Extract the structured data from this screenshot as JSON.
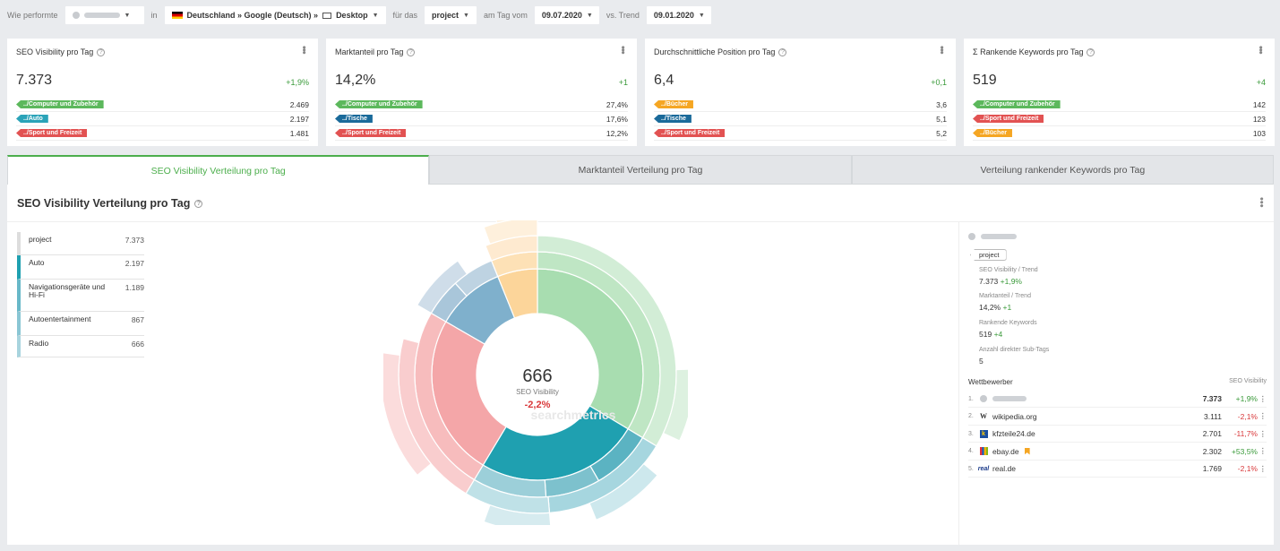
{
  "topbar": {
    "label_how": "Wie performte",
    "label_in": "in",
    "location": "Deutschland » Google (Deutsch) »",
    "device": "Desktop",
    "label_for": "für das",
    "project": "project",
    "label_day": "am Tag vom",
    "date": "09.07.2020",
    "label_trend": "vs. Trend",
    "trend_date": "09.01.2020"
  },
  "cards": [
    {
      "title": "SEO Visibility pro Tag",
      "value": "7.373",
      "delta": "+1,9%",
      "rows": [
        {
          "tag": "../Computer und Zubehör",
          "color": "green",
          "value": "2.469"
        },
        {
          "tag": "../Auto",
          "color": "teal",
          "value": "2.197"
        },
        {
          "tag": "../Sport und Freizeit",
          "color": "red",
          "value": "1.481"
        }
      ]
    },
    {
      "title": "Marktanteil pro Tag",
      "value": "14,2%",
      "delta": "+1",
      "rows": [
        {
          "tag": "../Computer und Zubehör",
          "color": "green",
          "value": "27,4%"
        },
        {
          "tag": "../Tische",
          "color": "navy",
          "value": "17,6%"
        },
        {
          "tag": "../Sport und Freizeit",
          "color": "red",
          "value": "12,2%"
        }
      ]
    },
    {
      "title": "Durchschnittliche Position pro Tag",
      "value": "6,4",
      "delta": "+0,1",
      "rows": [
        {
          "tag": "../Bücher",
          "color": "orange",
          "value": "3,6"
        },
        {
          "tag": "../Tische",
          "color": "navy",
          "value": "5,1"
        },
        {
          "tag": "../Sport und Freizeit",
          "color": "red",
          "value": "5,2"
        }
      ]
    },
    {
      "title": "Σ Rankende Keywords pro Tag",
      "value": "519",
      "delta": "+4",
      "rows": [
        {
          "tag": "../Computer und Zubehör",
          "color": "green",
          "value": "142"
        },
        {
          "tag": "../Sport und Freizeit",
          "color": "red",
          "value": "123"
        },
        {
          "tag": "../Bücher",
          "color": "orange",
          "value": "103"
        }
      ]
    }
  ],
  "tabs": [
    "SEO Visibility Verteilung pro Tag",
    "Marktanteil Verteilung pro Tag",
    "Verteilung rankender Keywords pro Tag"
  ],
  "main": {
    "title": "SEO Visibility Verteilung pro Tag",
    "legend": [
      {
        "label": "project",
        "value": "7.373",
        "color": "#ffffff"
      },
      {
        "label": "Auto",
        "value": "2.197",
        "color": "#1fa0b0"
      },
      {
        "label": "Navigationsgeräte und Hi-Fi",
        "value": "1.189",
        "color": "#68b8c8"
      },
      {
        "label": "Autoentertainment",
        "value": "867",
        "color": "#8ac6d4"
      },
      {
        "label": "Radio",
        "value": "666",
        "color": "#a8d4de"
      }
    ],
    "center_value": "666",
    "center_label": "SEO Visibility",
    "center_delta": "-2,2%",
    "watermark": "searchmetrics"
  },
  "side": {
    "pill": "project",
    "stats": [
      {
        "label": "SEO Visibility / Trend",
        "value": "7.373",
        "delta": "+1,9%"
      },
      {
        "label": "Marktanteil / Trend",
        "value": "14,2%",
        "delta": "+1"
      },
      {
        "label": "Rankende Keywords",
        "value": "519",
        "delta": "+4"
      },
      {
        "label": "Anzahl direkter Sub-Tags",
        "value": "5",
        "delta": ""
      }
    ],
    "competitors_label": "Wettbewerber",
    "competitors_metric": "SEO Visibility",
    "competitors": [
      {
        "num": "1.",
        "name": "",
        "value": "7.373",
        "delta": "+1,9%",
        "icon": "blurred-icon"
      },
      {
        "num": "2.",
        "name": "wikipedia.org",
        "value": "3.111",
        "delta": "-2,1%",
        "icon": "wikipedia-icon"
      },
      {
        "num": "3.",
        "name": "kfzteile24.de",
        "value": "2.701",
        "delta": "-11,7%",
        "icon": "kfzteile-icon"
      },
      {
        "num": "4.",
        "name": "ebay.de",
        "value": "2.302",
        "delta": "+53,5%",
        "icon": "ebay-icon"
      },
      {
        "num": "5.",
        "name": "real.de",
        "value": "1.769",
        "delta": "-2,1%",
        "icon": "real-icon"
      }
    ]
  },
  "colors": {
    "accent": "#4cae4c",
    "positive": "#3a9a3a",
    "negative": "#d9383a"
  }
}
